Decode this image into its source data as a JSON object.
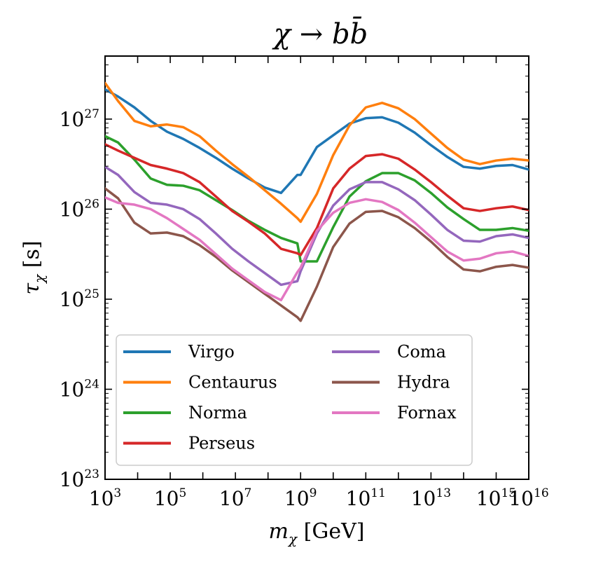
{
  "chart_data": {
    "type": "line",
    "title": "χ → bb̄",
    "xlabel": "m_χ [GeV]",
    "xlabel_parts": {
      "var": "m",
      "sub": "χ",
      "unit": " [GeV]"
    },
    "ylabel": "τ_χ [s]",
    "ylabel_parts": {
      "var": "τ",
      "sub": "χ",
      "unit": " [s]"
    },
    "xscale": "log",
    "yscale": "log",
    "xlim_log10": [
      3,
      16
    ],
    "ylim_log10": [
      23,
      27.7
    ],
    "x_ticks": [
      {
        "base": "10",
        "exp": "3",
        "log": 3
      },
      {
        "base": "10",
        "exp": "5",
        "log": 5
      },
      {
        "base": "10",
        "exp": "7",
        "log": 7
      },
      {
        "base": "10",
        "exp": "9",
        "log": 9
      },
      {
        "base": "10",
        "exp": "11",
        "log": 11
      },
      {
        "base": "10",
        "exp": "13",
        "log": 13
      },
      {
        "base": "10",
        "exp": "15",
        "log": 15
      },
      {
        "base": "10",
        "exp": "16",
        "log": 16
      }
    ],
    "y_ticks": [
      {
        "base": "10",
        "exp": "23",
        "log": 23
      },
      {
        "base": "10",
        "exp": "24",
        "log": 24
      },
      {
        "base": "10",
        "exp": "25",
        "log": 25
      },
      {
        "base": "10",
        "exp": "26",
        "log": 26
      },
      {
        "base": "10",
        "exp": "27",
        "log": 27
      }
    ],
    "legend_position": "lower-left",
    "series": [
      {
        "name": "Virgo",
        "color": "#1f77b4",
        "x_log10": [
          3.0,
          3.4,
          3.9,
          4.4,
          4.9,
          5.4,
          5.9,
          6.4,
          6.9,
          7.4,
          7.9,
          8.4,
          8.9,
          9.0,
          9.5,
          10.0,
          10.5,
          11.0,
          11.5,
          12.0,
          12.5,
          13.0,
          13.5,
          14.0,
          14.5,
          15.0,
          15.5,
          16.0
        ],
        "y_log10": [
          27.33,
          27.25,
          27.13,
          26.98,
          26.86,
          26.78,
          26.68,
          26.57,
          26.45,
          26.34,
          26.24,
          26.18,
          26.38,
          26.38,
          26.69,
          26.82,
          26.95,
          27.01,
          27.02,
          26.96,
          26.85,
          26.71,
          26.58,
          26.47,
          26.45,
          26.48,
          26.49,
          26.44
        ]
      },
      {
        "name": "Centaurus",
        "color": "#ff7f0e",
        "x_log10": [
          3.0,
          3.4,
          3.9,
          4.4,
          4.9,
          5.4,
          5.9,
          6.4,
          6.9,
          7.4,
          7.9,
          8.4,
          8.9,
          9.0,
          9.5,
          10.0,
          10.5,
          11.0,
          11.5,
          12.0,
          12.5,
          13.0,
          13.5,
          14.0,
          14.5,
          15.0,
          15.5,
          16.0
        ],
        "y_log10": [
          27.4,
          27.2,
          26.98,
          26.92,
          26.94,
          26.91,
          26.81,
          26.65,
          26.5,
          26.36,
          26.21,
          26.06,
          25.9,
          25.86,
          26.17,
          26.6,
          26.93,
          27.13,
          27.18,
          27.12,
          27.0,
          26.84,
          26.68,
          26.55,
          26.5,
          26.54,
          26.56,
          26.54
        ]
      },
      {
        "name": "Norma",
        "color": "#2ca02c",
        "x_log10": [
          3.0,
          3.4,
          3.9,
          4.4,
          4.9,
          5.4,
          5.9,
          6.4,
          6.9,
          7.4,
          7.9,
          8.4,
          8.9,
          9.0,
          9.5,
          10.0,
          10.5,
          11.0,
          11.5,
          12.0,
          12.5,
          13.0,
          13.5,
          14.0,
          14.5,
          15.0,
          15.5,
          16.0
        ],
        "y_log10": [
          26.81,
          26.74,
          26.55,
          26.34,
          26.27,
          26.26,
          26.21,
          26.1,
          25.99,
          25.87,
          25.77,
          25.68,
          25.62,
          25.42,
          25.42,
          25.8,
          26.14,
          26.31,
          26.4,
          26.4,
          26.32,
          26.18,
          26.02,
          25.89,
          25.77,
          25.77,
          25.79,
          25.76
        ]
      },
      {
        "name": "Perseus",
        "color": "#d62728",
        "x_log10": [
          3.0,
          3.4,
          3.9,
          4.4,
          4.9,
          5.4,
          5.9,
          6.4,
          6.9,
          7.4,
          7.9,
          8.4,
          8.9,
          9.0,
          9.5,
          10.0,
          10.5,
          11.0,
          11.5,
          12.0,
          12.5,
          13.0,
          13.5,
          14.0,
          14.5,
          15.0,
          15.5,
          16.0
        ],
        "y_log10": [
          26.72,
          26.65,
          26.57,
          26.49,
          26.45,
          26.4,
          26.3,
          26.14,
          25.98,
          25.86,
          25.73,
          25.56,
          25.51,
          25.49,
          25.79,
          26.23,
          26.45,
          26.59,
          26.61,
          26.56,
          26.44,
          26.3,
          26.15,
          26.01,
          25.98,
          26.01,
          26.03,
          25.99
        ]
      },
      {
        "name": "Coma",
        "color": "#9467bd",
        "x_log10": [
          3.0,
          3.4,
          3.9,
          4.4,
          4.9,
          5.4,
          5.9,
          6.4,
          6.9,
          7.4,
          7.9,
          8.4,
          8.9,
          9.0,
          9.5,
          10.0,
          10.5,
          11.0,
          11.5,
          12.0,
          12.5,
          13.0,
          13.5,
          14.0,
          14.5,
          15.0,
          15.5,
          16.0
        ],
        "y_log10": [
          26.47,
          26.38,
          26.19,
          26.07,
          26.05,
          26.0,
          25.89,
          25.73,
          25.56,
          25.42,
          25.29,
          25.16,
          25.2,
          25.31,
          25.73,
          26.04,
          26.22,
          26.3,
          26.3,
          26.22,
          26.1,
          25.94,
          25.77,
          25.65,
          25.64,
          25.7,
          25.72,
          25.68
        ]
      },
      {
        "name": "Hydra",
        "color": "#8c564b",
        "x_log10": [
          3.0,
          3.4,
          3.9,
          4.4,
          4.9,
          5.4,
          5.9,
          6.4,
          6.9,
          7.4,
          7.9,
          8.4,
          8.9,
          9.0,
          9.5,
          10.0,
          10.5,
          11.0,
          11.5,
          12.0,
          12.5,
          13.0,
          13.5,
          14.0,
          14.5,
          15.0,
          15.5,
          16.0
        ],
        "y_log10": [
          26.23,
          26.12,
          25.85,
          25.73,
          25.74,
          25.7,
          25.6,
          25.47,
          25.32,
          25.19,
          25.06,
          24.93,
          24.8,
          24.76,
          25.14,
          25.58,
          25.84,
          25.97,
          25.98,
          25.91,
          25.79,
          25.64,
          25.47,
          25.33,
          25.31,
          25.36,
          25.38,
          25.35
        ]
      },
      {
        "name": "Fornax",
        "color": "#e377c2",
        "x_log10": [
          3.0,
          3.4,
          3.9,
          4.4,
          4.9,
          5.4,
          5.9,
          6.4,
          6.9,
          7.4,
          7.9,
          8.4,
          8.9,
          9.0,
          9.5,
          10.0,
          10.5,
          11.0,
          11.5,
          12.0,
          12.5,
          13.0,
          13.5,
          14.0,
          14.5,
          15.0,
          15.5,
          16.0
        ],
        "y_log10": [
          26.13,
          26.07,
          26.05,
          26.0,
          25.9,
          25.78,
          25.66,
          25.5,
          25.34,
          25.21,
          25.08,
          24.99,
          25.3,
          25.35,
          25.76,
          25.96,
          26.07,
          26.11,
          26.08,
          25.99,
          25.85,
          25.69,
          25.53,
          25.43,
          25.45,
          25.51,
          25.53,
          25.48
        ]
      }
    ]
  }
}
